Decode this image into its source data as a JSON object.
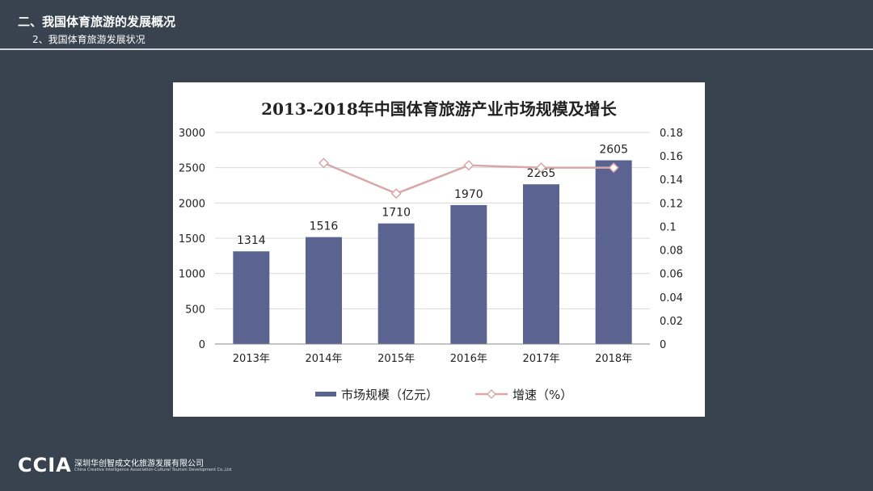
{
  "header": {
    "section_title": "二、我国体育旅游的发展概况",
    "sub_title": "2、我国体育旅游发展状况"
  },
  "footer": {
    "logo_text": "CCIA",
    "company_cn": "深圳华创智成文化旅游发展有限公司",
    "company_en": "China Creative Intelligence Association·Cultural Tourism Development Co.,Ltd"
  },
  "colors": {
    "background": "#38434f",
    "bar": "#5b6490",
    "line": "#d9a7aa",
    "marker_fill": "#ffffff"
  },
  "chart_data": {
    "type": "bar",
    "title": "2013-2018年中国体育旅游产业市场规模及增长",
    "categories": [
      "2013年",
      "2014年",
      "2015年",
      "2016年",
      "2017年",
      "2018年"
    ],
    "series": [
      {
        "name": "市场规模（亿元）",
        "type": "bar",
        "axis": "left",
        "values": [
          1314,
          1516,
          1710,
          1970,
          2265,
          2605
        ],
        "data_labels": [
          "1314",
          "1516",
          "1710",
          "1970",
          "2265",
          "2605"
        ]
      },
      {
        "name": "增速（%）",
        "type": "line",
        "axis": "right",
        "values": [
          null,
          0.154,
          0.128,
          0.152,
          0.15,
          0.15
        ]
      }
    ],
    "y_left": {
      "min": 0,
      "max": 3000,
      "ticks": [
        0,
        500,
        1000,
        1500,
        2000,
        2500,
        3000
      ],
      "tick_labels": [
        "0",
        "500",
        "1000",
        "1500",
        "2000",
        "2500",
        "3000"
      ]
    },
    "y_right": {
      "min": 0,
      "max": 0.18,
      "ticks": [
        0,
        0.02,
        0.04,
        0.06,
        0.08,
        0.1,
        0.12,
        0.14,
        0.16,
        0.18
      ],
      "tick_labels": [
        "0",
        "0.02",
        "0.04",
        "0.06",
        "0.08",
        "0.1",
        "0.12",
        "0.14",
        "0.16",
        "0.18"
      ]
    },
    "grid": true,
    "legend_position": "bottom"
  }
}
